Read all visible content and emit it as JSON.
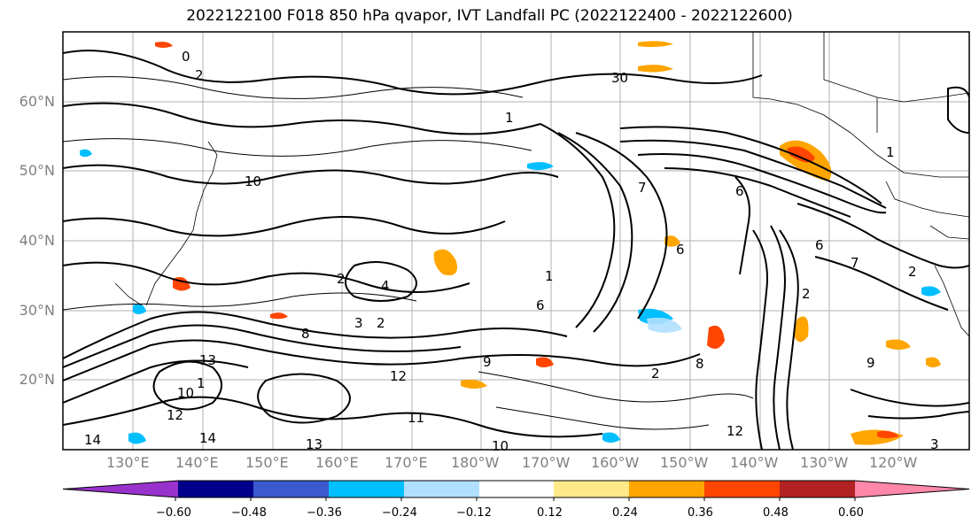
{
  "title": "2022122100 F018 850 hPa qvapor, IVT Landfall PC (2022122400 - 2022122600)",
  "latitude_labels": [
    "60°N",
    "50°N",
    "40°N",
    "30°N",
    "20°N"
  ],
  "longitude_labels": [
    "130°E",
    "140°E",
    "150°E",
    "160°E",
    "170°E",
    "180°W",
    "170°W",
    "160°W",
    "150°W",
    "140°W",
    "130°W",
    "120°W"
  ],
  "colorbar": {
    "tick_labels": [
      "−0.60",
      "−0.48",
      "−0.36",
      "−0.24",
      "−0.12",
      "0.12",
      "0.24",
      "0.36",
      "0.48",
      "0.60"
    ],
    "colors": [
      "#9932cc",
      "#00008b",
      "#3a5acd",
      "#00bfff",
      "#b0e0ff",
      "#ffffff",
      "#ffe989",
      "#ffa500",
      "#ff4500",
      "#b22222",
      "#ff88aa"
    ]
  },
  "contour_labels": [
    "2",
    "1",
    "0",
    "30",
    "10",
    "7",
    "6",
    "2",
    "4",
    "3",
    "2",
    "6",
    "8",
    "9",
    "8",
    "2",
    "1",
    "12",
    "13",
    "10",
    "12",
    "13",
    "14",
    "11",
    "12",
    "10",
    "14",
    "1",
    "3",
    "6",
    "7",
    "2",
    "1",
    "2",
    "6",
    "9"
  ]
}
